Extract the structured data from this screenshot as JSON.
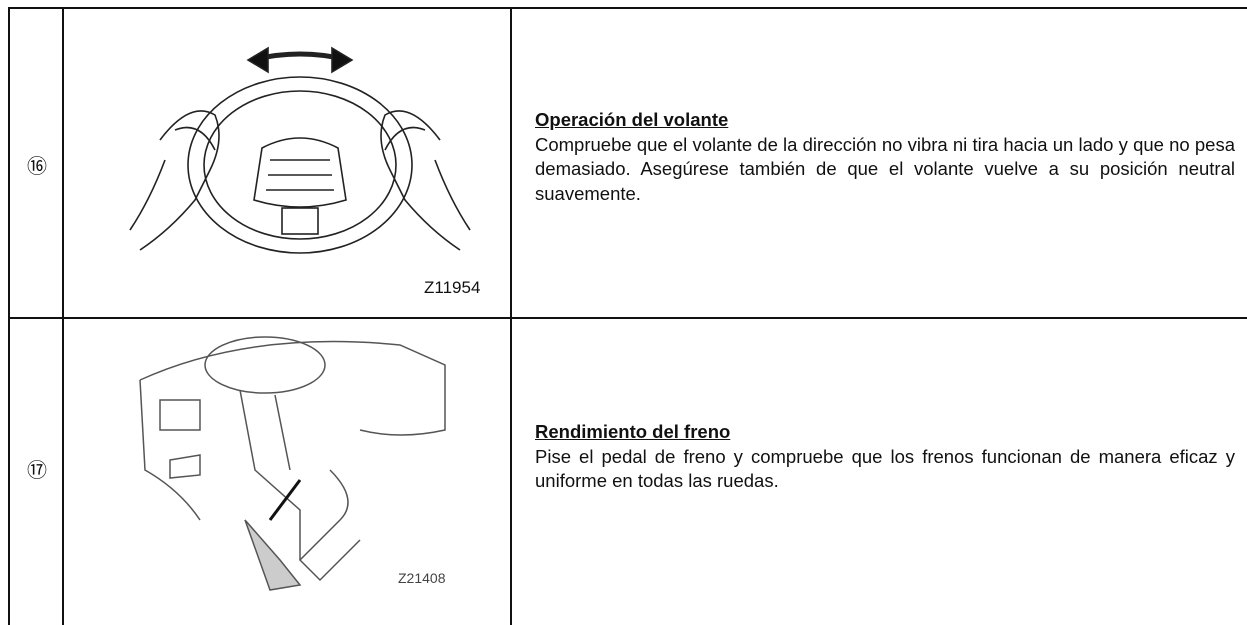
{
  "table": {
    "rows": [
      {
        "number": "⑯",
        "figure_code": "Z11954",
        "heading": "Operación del volante",
        "body": "Compruebe que el volante de la dirección no vibra ni tira hacia un lado y que no pesa demasiado. Asegúrese también de que el volante vuelve a su posición neutral suavemente."
      },
      {
        "number": "⑰",
        "figure_code": "Z21408",
        "heading": "Rendimiento del freno",
        "body": "Pise el pedal de freno y compruebe que los frenos funcionan de manera eficaz y uniforme en todas las ruedas."
      }
    ]
  }
}
